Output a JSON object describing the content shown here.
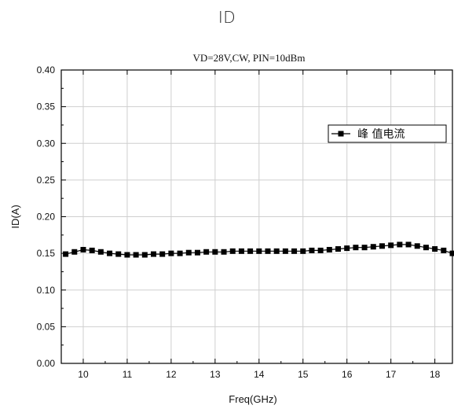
{
  "figure_title": "ID",
  "chart_data": {
    "type": "line",
    "title": "VD=28V,CW, PIN=10dBm",
    "xlabel": "Freq(GHz)",
    "ylabel": "ID(A)",
    "xlim": [
      9.5,
      18.4
    ],
    "ylim": [
      0.0,
      0.4
    ],
    "x_ticks": [
      "10",
      "11",
      "12",
      "13",
      "14",
      "15",
      "16",
      "17",
      "18"
    ],
    "y_ticks": [
      "0.00",
      "0.05",
      "0.10",
      "0.15",
      "0.20",
      "0.25",
      "0.30",
      "0.35",
      "0.40"
    ],
    "grid": true,
    "legend_position": "upper-right",
    "marker": "square",
    "line_color": "#000000",
    "series": [
      {
        "name": "峰 值电流",
        "x": [
          9.6,
          9.8,
          10.0,
          10.2,
          10.4,
          10.6,
          10.8,
          11.0,
          11.2,
          11.4,
          11.6,
          11.8,
          12.0,
          12.2,
          12.4,
          12.6,
          12.8,
          13.0,
          13.2,
          13.4,
          13.6,
          13.8,
          14.0,
          14.2,
          14.4,
          14.6,
          14.8,
          15.0,
          15.2,
          15.4,
          15.6,
          15.8,
          16.0,
          16.2,
          16.4,
          16.6,
          16.8,
          17.0,
          17.2,
          17.4,
          17.6,
          17.8,
          18.0,
          18.2,
          18.4
        ],
        "values": [
          0.149,
          0.152,
          0.155,
          0.154,
          0.152,
          0.15,
          0.149,
          0.148,
          0.148,
          0.148,
          0.149,
          0.149,
          0.15,
          0.15,
          0.151,
          0.151,
          0.152,
          0.152,
          0.152,
          0.153,
          0.153,
          0.153,
          0.153,
          0.153,
          0.153,
          0.153,
          0.153,
          0.153,
          0.154,
          0.154,
          0.155,
          0.156,
          0.157,
          0.158,
          0.158,
          0.159,
          0.16,
          0.161,
          0.162,
          0.162,
          0.16,
          0.158,
          0.156,
          0.154,
          0.15
        ]
      }
    ]
  }
}
